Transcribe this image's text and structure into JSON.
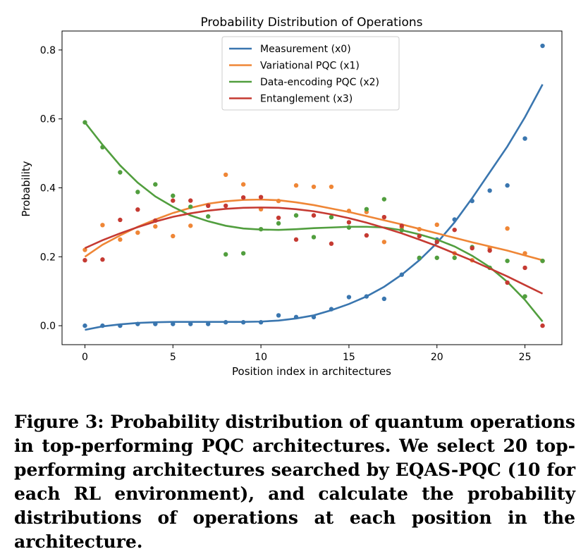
{
  "chart_data": {
    "type": "scatter",
    "title": "Probability Distribution of Operations",
    "xlabel": "Position index in architectures",
    "ylabel": "Probability",
    "xlim": [
      -1.3,
      27.1
    ],
    "ylim": [
      -0.055,
      0.855
    ],
    "xticks": [
      0,
      5,
      10,
      15,
      20,
      25
    ],
    "yticks": [
      0.0,
      0.2,
      0.4,
      0.6,
      0.8
    ],
    "legend_position": "top-center",
    "grid": false,
    "x": [
      0,
      1,
      2,
      3,
      4,
      5,
      6,
      7,
      8,
      9,
      10,
      11,
      12,
      13,
      14,
      15,
      16,
      17,
      18,
      19,
      20,
      21,
      22,
      23,
      24,
      25,
      26
    ],
    "series": [
      {
        "name": "Measurement (x0)",
        "color": "#3a76af",
        "points": [
          0.0,
          0.0,
          0.0,
          0.005,
          0.005,
          0.005,
          0.005,
          0.005,
          0.01,
          0.01,
          0.01,
          0.03,
          0.025,
          0.025,
          0.048,
          0.083,
          0.085,
          0.078,
          0.148,
          0.195,
          0.25,
          0.308,
          0.362,
          0.392,
          0.407,
          0.543,
          0.812
        ],
        "fit": [
          -0.012,
          -0.002,
          0.004,
          0.008,
          0.01,
          0.011,
          0.011,
          0.011,
          0.011,
          0.011,
          0.012,
          0.015,
          0.021,
          0.03,
          0.045,
          0.063,
          0.085,
          0.113,
          0.148,
          0.19,
          0.24,
          0.3,
          0.37,
          0.445,
          0.52,
          0.605,
          0.7
        ]
      },
      {
        "name": "Variational PQC (x1)",
        "color": "#ef8636",
        "points": [
          0.22,
          0.292,
          0.25,
          0.27,
          0.288,
          0.26,
          0.29,
          0.35,
          0.438,
          0.41,
          0.338,
          0.362,
          0.407,
          0.403,
          0.403,
          0.333,
          0.33,
          0.243,
          0.285,
          0.28,
          0.293,
          0.21,
          0.19,
          0.225,
          0.282,
          0.21,
          0.188
        ],
        "fit": [
          0.2,
          0.235,
          0.262,
          0.287,
          0.308,
          0.327,
          0.342,
          0.354,
          0.361,
          0.365,
          0.366,
          0.364,
          0.358,
          0.35,
          0.34,
          0.33,
          0.318,
          0.306,
          0.294,
          0.281,
          0.268,
          0.255,
          0.242,
          0.23,
          0.218,
          0.204,
          0.19
        ]
      },
      {
        "name": "Data-encoding PQC (x2)",
        "color": "#519e3e",
        "points": [
          0.59,
          0.518,
          0.445,
          0.388,
          0.41,
          0.377,
          0.345,
          0.317,
          0.207,
          0.21,
          0.28,
          0.297,
          0.32,
          0.257,
          0.315,
          0.285,
          0.338,
          0.367,
          0.277,
          0.197,
          0.197,
          0.197,
          0.228,
          0.168,
          0.188,
          0.085,
          0.188
        ],
        "fit": [
          0.59,
          0.525,
          0.465,
          0.415,
          0.375,
          0.345,
          0.32,
          0.303,
          0.29,
          0.282,
          0.279,
          0.278,
          0.28,
          0.283,
          0.285,
          0.287,
          0.287,
          0.285,
          0.277,
          0.265,
          0.25,
          0.23,
          0.203,
          0.17,
          0.127,
          0.075,
          0.012
        ]
      },
      {
        "name": "Entanglement (x3)",
        "color": "#c53a32",
        "points": [
          0.19,
          0.192,
          0.307,
          0.337,
          0.305,
          0.363,
          0.363,
          0.348,
          0.348,
          0.372,
          0.373,
          0.313,
          0.25,
          0.32,
          0.238,
          0.3,
          0.262,
          0.315,
          0.29,
          0.26,
          0.243,
          0.278,
          0.225,
          0.218,
          0.125,
          0.168,
          0.0
        ],
        "fit": [
          0.225,
          0.248,
          0.268,
          0.286,
          0.302,
          0.316,
          0.326,
          0.334,
          0.339,
          0.342,
          0.343,
          0.342,
          0.338,
          0.332,
          0.323,
          0.312,
          0.299,
          0.284,
          0.268,
          0.25,
          0.231,
          0.21,
          0.189,
          0.166,
          0.143,
          0.118,
          0.093
        ]
      }
    ]
  },
  "caption": "Figure 3: Probability distribution of quantum operations in top-performing PQC architectures. We select 20 top-performing architectures searched by EQAS-PQC (10 for each RL environment), and calculate the probability distributions of operations at each position in the architecture."
}
